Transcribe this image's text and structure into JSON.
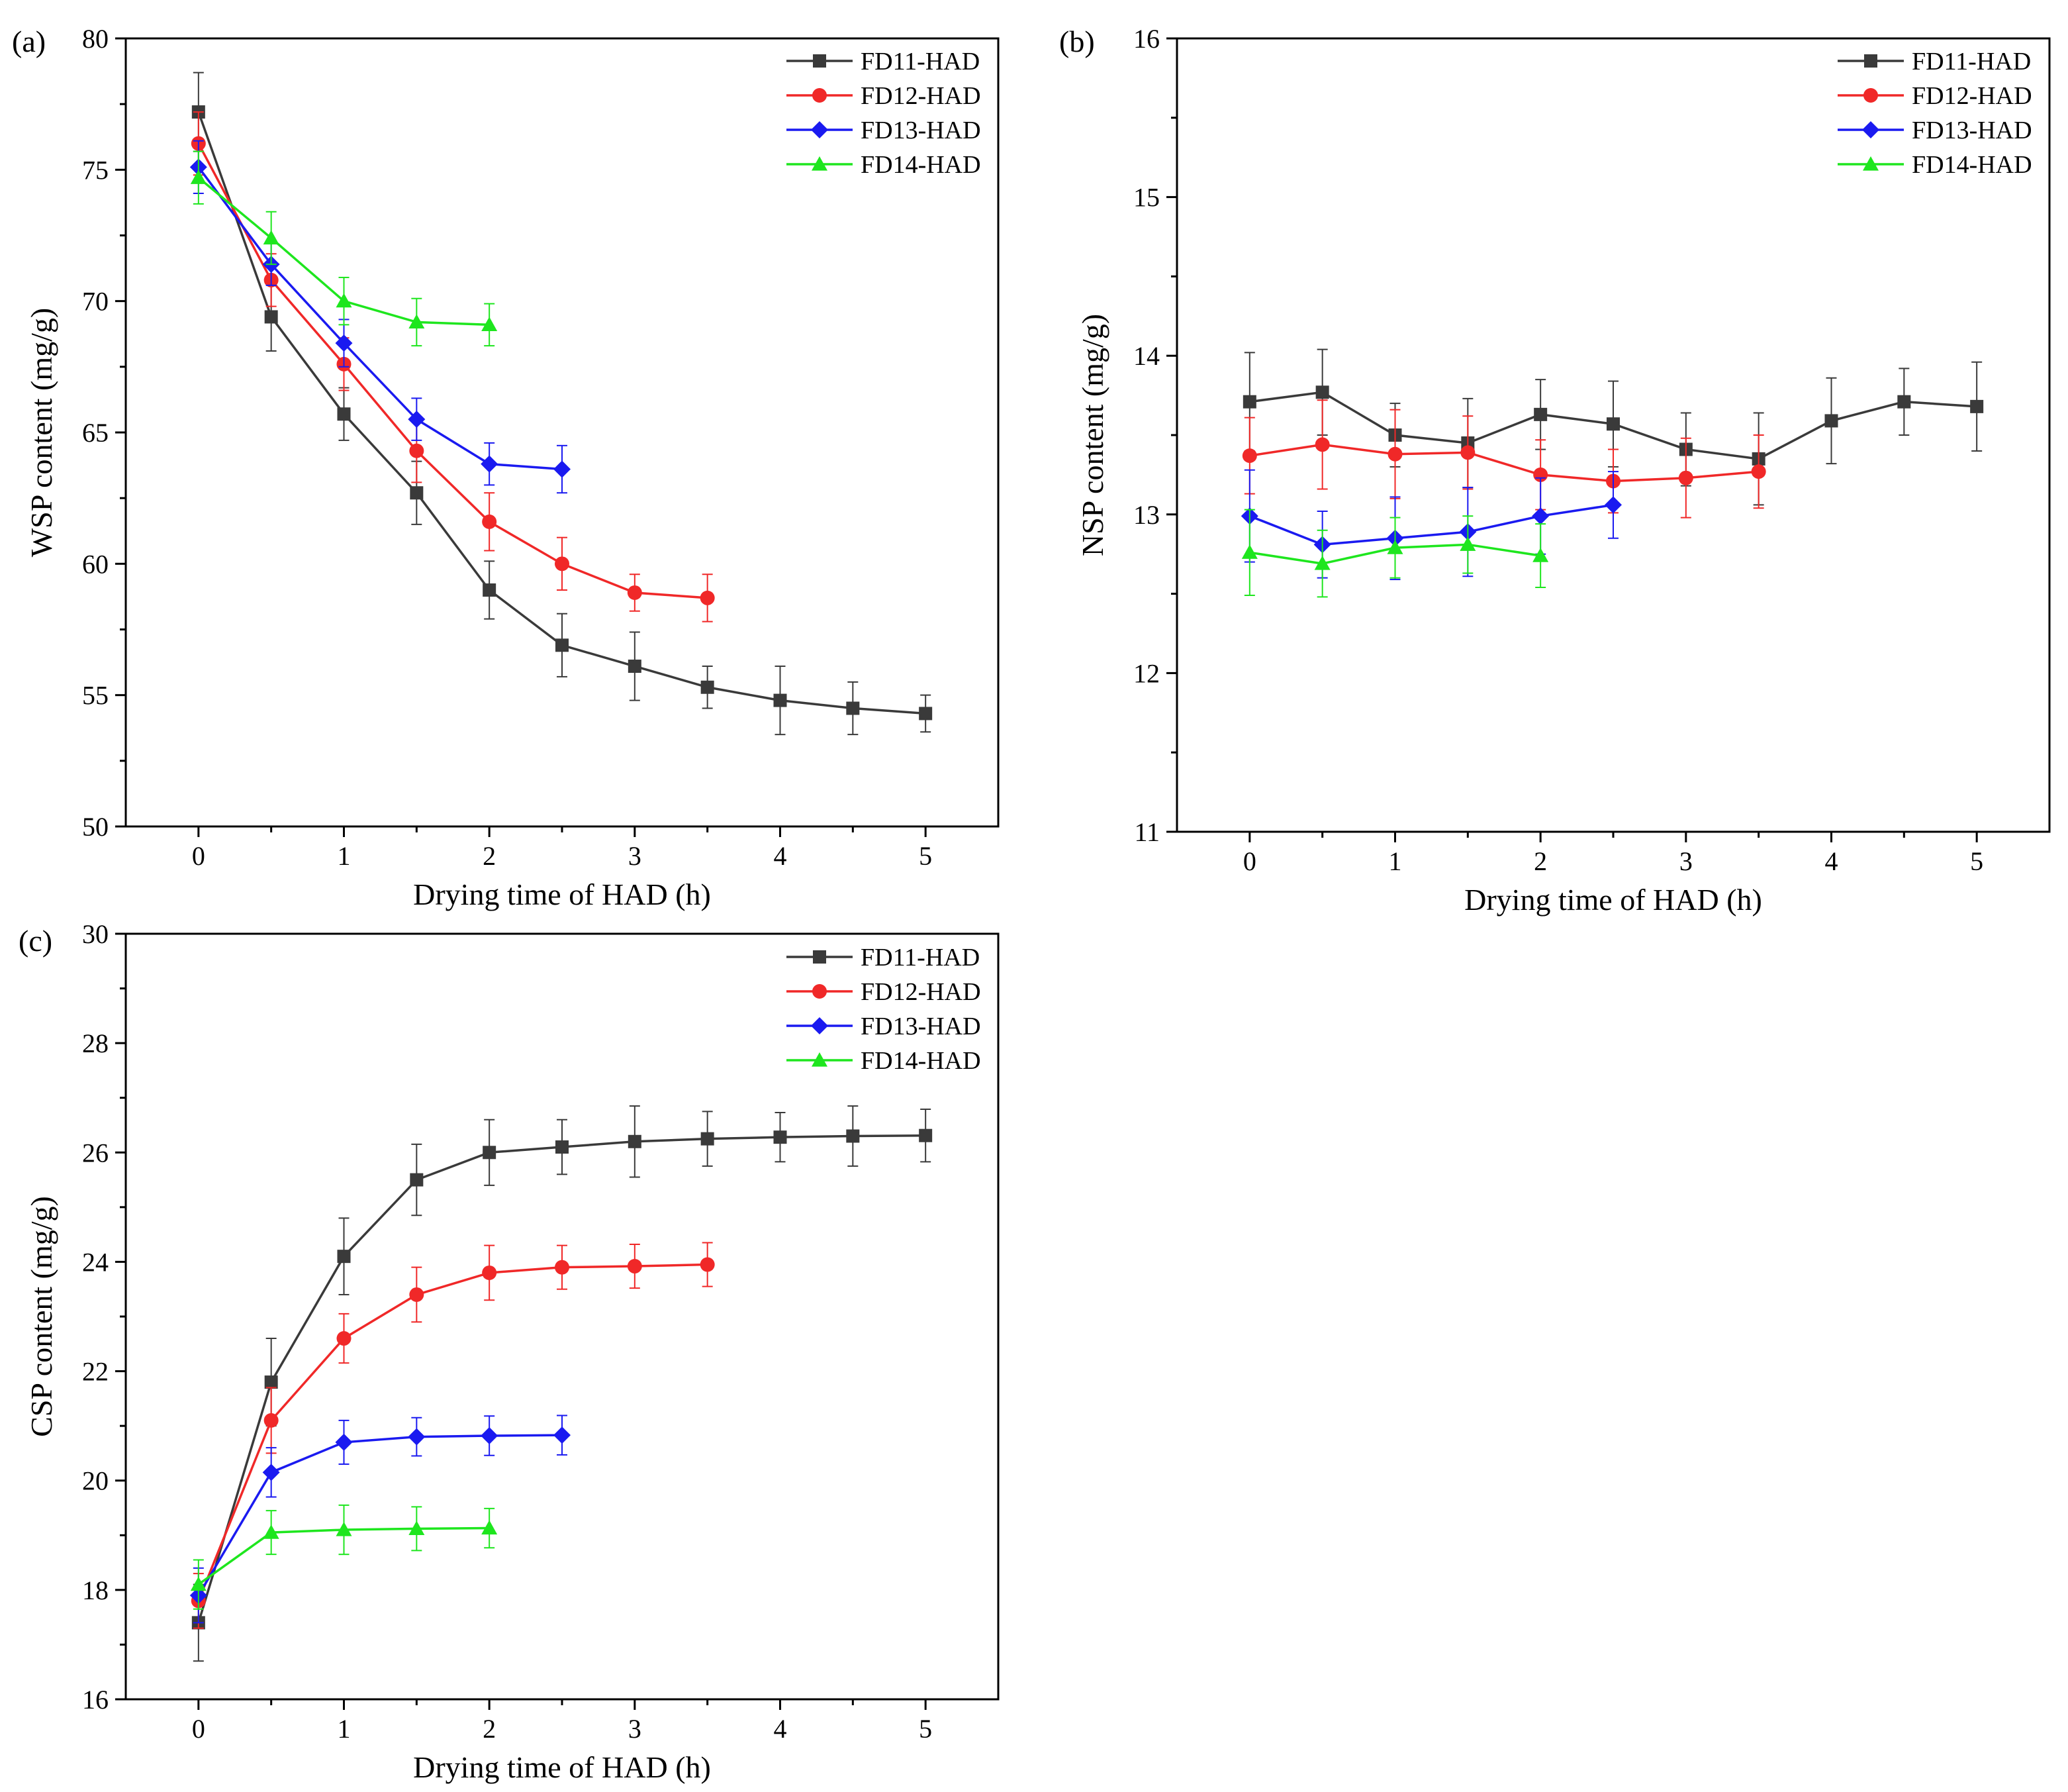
{
  "chart_data": [
    {
      "panel_label": "(a)",
      "type": "line",
      "xlabel": "Drying time of HAD (h)",
      "ylabel": "WSP content (mg/g)",
      "xlim": [
        -0.5,
        5.5
      ],
      "ylim": [
        50,
        80
      ],
      "xticks": [
        0,
        1,
        2,
        3,
        4,
        5
      ],
      "yticks": [
        50,
        55,
        60,
        65,
        70,
        75,
        80
      ],
      "legend_position": "top-right",
      "series": [
        {
          "name": "FD11-HAD",
          "color": "#3a3a3a",
          "marker": "square",
          "x": [
            0,
            0.5,
            1,
            1.5,
            2,
            2.5,
            3,
            3.5,
            4,
            4.5,
            5
          ],
          "y": [
            77.2,
            69.4,
            65.7,
            62.7,
            59.0,
            56.9,
            56.1,
            55.3,
            54.8,
            54.5,
            54.3
          ],
          "err": [
            1.5,
            1.3,
            1.0,
            1.2,
            1.1,
            1.2,
            1.3,
            0.8,
            1.3,
            1.0,
            0.7
          ]
        },
        {
          "name": "FD12-HAD",
          "color": "#f02828",
          "marker": "circle",
          "x": [
            0,
            0.5,
            1,
            1.5,
            2,
            2.5,
            3,
            3.5
          ],
          "y": [
            76.0,
            70.8,
            67.6,
            64.3,
            61.6,
            60.0,
            58.9,
            58.7
          ],
          "err": [
            1.2,
            1.0,
            1.0,
            1.2,
            1.1,
            1.0,
            0.7,
            0.9
          ]
        },
        {
          "name": "FD13-HAD",
          "color": "#1a1af0",
          "marker": "diamond",
          "x": [
            0,
            0.5,
            1,
            1.5,
            2,
            2.5
          ],
          "y": [
            75.1,
            71.4,
            68.4,
            65.5,
            63.8,
            63.6
          ],
          "err": [
            1.0,
            0.8,
            0.9,
            0.8,
            0.8,
            0.9
          ]
        },
        {
          "name": "FD14-HAD",
          "color": "#1ee61e",
          "marker": "triangle",
          "x": [
            0,
            0.5,
            1,
            1.5,
            2
          ],
          "y": [
            74.7,
            72.4,
            70.0,
            69.2,
            69.1
          ],
          "err": [
            1.0,
            1.0,
            0.9,
            0.9,
            0.8
          ]
        }
      ]
    },
    {
      "panel_label": "(b)",
      "type": "line",
      "xlabel": "Drying time of HAD (h)",
      "ylabel": "NSP content (mg/g)",
      "xlim": [
        -0.5,
        5.5
      ],
      "ylim": [
        11,
        16
      ],
      "xticks": [
        0,
        1,
        2,
        3,
        4,
        5
      ],
      "yticks": [
        11,
        12,
        13,
        14,
        15,
        16
      ],
      "legend_position": "top-right",
      "series": [
        {
          "name": "FD11-HAD",
          "color": "#3a3a3a",
          "marker": "square",
          "x": [
            0,
            0.5,
            1,
            1.5,
            2,
            2.5,
            3,
            3.5,
            4,
            4.5,
            5
          ],
          "y": [
            13.71,
            13.77,
            13.5,
            13.45,
            13.63,
            13.57,
            13.41,
            13.35,
            13.59,
            13.71,
            13.68
          ],
          "err": [
            0.31,
            0.27,
            0.2,
            0.28,
            0.22,
            0.27,
            0.23,
            0.29,
            0.27,
            0.21,
            0.28
          ]
        },
        {
          "name": "FD12-HAD",
          "color": "#f02828",
          "marker": "circle",
          "x": [
            0,
            0.5,
            1,
            1.5,
            2,
            2.5,
            3,
            3.5
          ],
          "y": [
            13.37,
            13.44,
            13.38,
            13.39,
            13.25,
            13.21,
            13.23,
            13.27
          ],
          "err": [
            0.24,
            0.28,
            0.28,
            0.23,
            0.22,
            0.2,
            0.25,
            0.23
          ]
        },
        {
          "name": "FD13-HAD",
          "color": "#1a1af0",
          "marker": "diamond",
          "x": [
            0,
            0.5,
            1,
            1.5,
            2,
            2.5
          ],
          "y": [
            12.99,
            12.81,
            12.85,
            12.89,
            12.99,
            13.06
          ],
          "err": [
            0.29,
            0.21,
            0.26,
            0.28,
            0.24,
            0.21
          ]
        },
        {
          "name": "FD14-HAD",
          "color": "#1ee61e",
          "marker": "triangle",
          "x": [
            0,
            0.5,
            1,
            1.5,
            2
          ],
          "y": [
            12.76,
            12.69,
            12.79,
            12.81,
            12.74
          ],
          "err": [
            0.27,
            0.21,
            0.19,
            0.18,
            0.2
          ]
        }
      ]
    },
    {
      "panel_label": "(c)",
      "type": "line",
      "xlabel": "Drying time of HAD (h)",
      "ylabel": "CSP content (mg/g)",
      "xlim": [
        -0.5,
        5.5
      ],
      "ylim": [
        16,
        30
      ],
      "xticks": [
        0,
        1,
        2,
        3,
        4,
        5
      ],
      "yticks": [
        16,
        18,
        20,
        22,
        24,
        26,
        28,
        30
      ],
      "legend_position": "top-right",
      "series": [
        {
          "name": "FD11-HAD",
          "color": "#3a3a3a",
          "marker": "square",
          "x": [
            0,
            0.5,
            1,
            1.5,
            2,
            2.5,
            3,
            3.5,
            4,
            4.5,
            5
          ],
          "y": [
            17.4,
            21.8,
            24.1,
            25.5,
            26.0,
            26.1,
            26.2,
            26.25,
            26.28,
            26.3,
            26.31
          ],
          "err": [
            0.7,
            0.8,
            0.7,
            0.65,
            0.6,
            0.5,
            0.65,
            0.5,
            0.45,
            0.55,
            0.48
          ]
        },
        {
          "name": "FD12-HAD",
          "color": "#f02828",
          "marker": "circle",
          "x": [
            0,
            0.5,
            1,
            1.5,
            2,
            2.5,
            3,
            3.5
          ],
          "y": [
            17.8,
            21.1,
            22.6,
            23.4,
            23.8,
            23.9,
            23.92,
            23.95
          ],
          "err": [
            0.5,
            0.6,
            0.45,
            0.5,
            0.5,
            0.4,
            0.4,
            0.4
          ]
        },
        {
          "name": "FD13-HAD",
          "color": "#1a1af0",
          "marker": "diamond",
          "x": [
            0,
            0.5,
            1,
            1.5,
            2,
            2.5
          ],
          "y": [
            17.9,
            20.15,
            20.7,
            20.8,
            20.82,
            20.83
          ],
          "err": [
            0.5,
            0.45,
            0.4,
            0.35,
            0.36,
            0.36
          ]
        },
        {
          "name": "FD14-HAD",
          "color": "#1ee61e",
          "marker": "triangle",
          "x": [
            0,
            0.5,
            1,
            1.5,
            2
          ],
          "y": [
            18.1,
            19.05,
            19.1,
            19.12,
            19.13
          ],
          "err": [
            0.45,
            0.4,
            0.45,
            0.4,
            0.36
          ]
        }
      ]
    }
  ]
}
